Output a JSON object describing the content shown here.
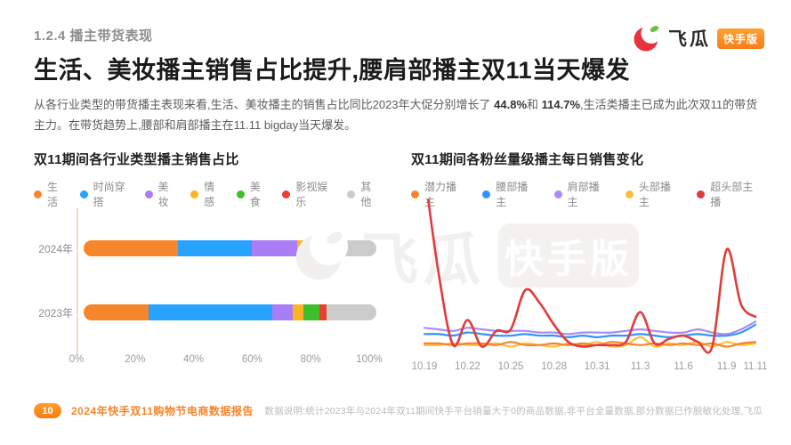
{
  "page": {
    "eyebrow": "1.2.4 播主带货表现",
    "title": "生活、美妆播主销售占比提升,腰肩部播主双11当天爆发"
  },
  "logo": {
    "name": "飞瓜",
    "badge": "快手版",
    "badge_color": "#F5862B",
    "melon_red": "#E8333F",
    "leaf_green": "#6DBE45"
  },
  "intro": {
    "t1": "从各行业类型的带货播主表现来看,生活、美妆播主的销售占比同比2023年大促分别增长了 ",
    "b1": "44.8%",
    "t2": "和 ",
    "b2": "114.7%",
    "t3": ",生活类播主已成为此次双11的带货主力。在带货趋势上,腰部和肩部播主在11.11 bigday当天爆发。"
  },
  "watermark": {
    "name": "飞瓜",
    "badge": "快手版"
  },
  "footer": {
    "page_number": "10",
    "report": "2024年快手双11购物节电商数据报告",
    "note": "数据说明:统计2023年与2024年双11期间快手平台销量大于0的商品数据,非平台全量数据,部分数据已作脱敏化处理,飞瓜"
  },
  "chart_data": [
    {
      "type": "bar",
      "orientation": "horizontal-stacked",
      "title": "双11期间各行业类型播主销售占比",
      "categories": [
        "2024年",
        "2023年"
      ],
      "unit": "percent of sales",
      "xlim": [
        0,
        100
      ],
      "x_ticks": [
        "0%",
        "20%",
        "40%",
        "60%",
        "80%",
        "100%"
      ],
      "grid": "none",
      "legend_position": "top",
      "series": [
        {
          "name": "生活",
          "color": "#F5862B",
          "values": [
            32.1,
            22.2
          ]
        },
        {
          "name": "时尚穿搭",
          "color": "#28A2FF",
          "values": [
            25.5,
            42.1
          ]
        },
        {
          "name": "美妆",
          "color": "#A87DF5",
          "values": [
            15.3,
            7.1
          ]
        },
        {
          "name": "情感",
          "color": "#FFB224",
          "values": [
            5.8,
            3.6
          ]
        },
        {
          "name": "美食",
          "color": "#3EBE2B",
          "values": [
            3.9,
            5.6
          ]
        },
        {
          "name": "影视娱乐",
          "color": "#E8402E",
          "values": [
            3.1,
            2.5
          ]
        },
        {
          "name": "其他",
          "color": "#CBCBCB",
          "values": [
            14.3,
            16.9
          ]
        }
      ]
    },
    {
      "type": "line",
      "title": "双11期间各粉丝量级播主每日销售变化",
      "x": [
        "10.19",
        "10.20",
        "10.21",
        "10.22",
        "10.23",
        "10.24",
        "10.25",
        "10.26",
        "10.27",
        "10.28",
        "10.29",
        "10.30",
        "10.31",
        "11.1",
        "11.2",
        "11.3",
        "11.4",
        "11.5",
        "11.6",
        "11.7",
        "11.8",
        "11.9",
        "11.10",
        "11.11"
      ],
      "x_ticks": [
        "10.19",
        "10.22",
        "10.25",
        "10.28",
        "10.31",
        "11.3",
        "11.6",
        "11.9",
        "11.11"
      ],
      "tick_indices": [
        0,
        3,
        6,
        9,
        12,
        15,
        18,
        21,
        23
      ],
      "ylim": [
        0,
        100
      ],
      "unit": "relative daily sales (axis unlabeled)",
      "grid": "none",
      "legend_position": "top",
      "draw_order": [
        3,
        0,
        1,
        2,
        4
      ],
      "series": [
        {
          "name": "潜力播主",
          "color": "#F5862B",
          "stroke_width": 2.2,
          "values": [
            8,
            8,
            7,
            8,
            8,
            7,
            9,
            7,
            7,
            8,
            7,
            8,
            7,
            9,
            8,
            7,
            8,
            7,
            8,
            7,
            8,
            6,
            8,
            9
          ]
        },
        {
          "name": "腰部播主",
          "color": "#3093FB",
          "stroke_width": 2.2,
          "values": [
            14,
            14,
            13,
            15,
            14,
            13,
            13,
            14,
            13,
            13,
            12,
            13,
            12,
            13,
            13,
            14,
            13,
            12,
            13,
            14,
            13,
            13,
            15,
            20
          ]
        },
        {
          "name": "肩部播主",
          "color": "#A98BF7",
          "stroke_width": 2.2,
          "values": [
            18,
            17,
            16,
            18,
            17,
            16,
            16,
            16,
            15,
            15,
            14,
            15,
            15,
            15,
            16,
            17,
            16,
            15,
            15,
            17,
            15,
            14,
            17,
            22
          ]
        },
        {
          "name": "头部播主",
          "color": "#FFBD3C",
          "stroke_width": 2.2,
          "values": [
            7,
            7,
            8,
            7,
            7,
            8,
            6,
            8,
            7,
            6,
            8,
            7,
            9,
            6,
            7,
            12,
            6,
            8,
            7,
            9,
            6,
            9,
            7,
            8
          ]
        },
        {
          "name": "超头部主播",
          "color": "#E23B3B",
          "stroke_width": 2.6,
          "values": [
            118,
            52,
            7,
            23,
            6,
            16,
            17,
            42,
            34,
            20,
            9,
            6,
            7,
            7,
            9,
            28,
            8,
            11,
            13,
            9,
            6,
            68,
            33,
            25
          ]
        }
      ]
    }
  ]
}
